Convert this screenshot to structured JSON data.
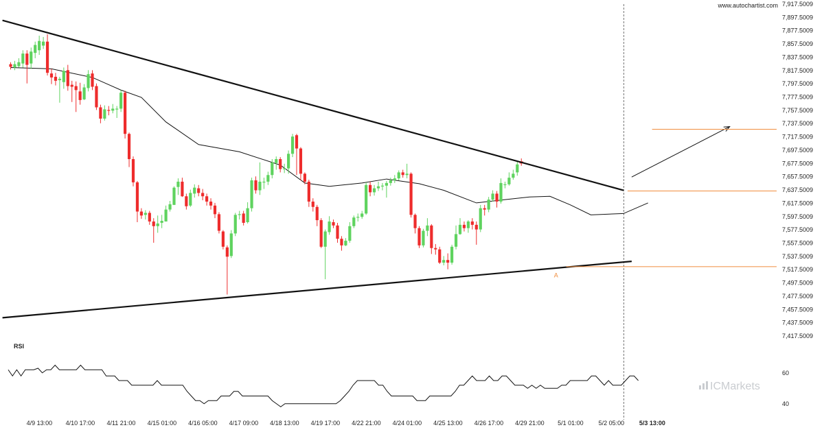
{
  "site": "www.autochartist.com",
  "brand": "ICMarkets",
  "colors": {
    "bull": "#5fd35f",
    "bear": "#ee2c2c",
    "trendline": "#111111",
    "projection": "#f08c3c",
    "ma": "#111111",
    "rsi": "#111111",
    "vline": "#777777",
    "brand": "#c9ccd0"
  },
  "chart_data": {
    "type": "candlestick",
    "ylim": [
      7417.5009,
      7917.5009
    ],
    "y_ticks": [
      7917.5009,
      7897.5009,
      7877.5009,
      7857.5009,
      7837.5009,
      7817.5009,
      7797.5009,
      7777.5009,
      7757.5009,
      7737.5009,
      7717.5009,
      7697.5009,
      7677.5009,
      7657.5009,
      7637.5009,
      7617.5009,
      7597.5009,
      7577.5009,
      7557.5009,
      7537.5009,
      7517.5009,
      7497.5009,
      7477.5009,
      7457.5009,
      7437.5009,
      7417.5009
    ],
    "y_tick_labels": [
      "7,917.5009",
      "7,897.5009",
      "7,877.5009",
      "7,857.5009",
      "7,837.5009",
      "7,817.5009",
      "7,797.5009",
      "7,777.5009",
      "7,757.5009",
      "7,737.5009",
      "7,717.5009",
      "7,697.5009",
      "7,677.5009",
      "7,657.5009",
      "7,637.5009",
      "7,617.5009",
      "7,597.5009",
      "7,577.5009",
      "7,557.5009",
      "7,537.5009",
      "7,517.5009",
      "7,497.5009",
      "7,477.5009",
      "7,457.5009",
      "7,437.5009",
      "7,417.5009"
    ],
    "x_labels": [
      {
        "label": "4/9 13:00",
        "bar": 2,
        "bold": false
      },
      {
        "label": "4/10 17:00",
        "bar": 12,
        "bold": false
      },
      {
        "label": "4/11 21:00",
        "bar": 22,
        "bold": false
      },
      {
        "label": "4/15 01:00",
        "bar": 32,
        "bold": false
      },
      {
        "label": "4/16 05:00",
        "bar": 42,
        "bold": false
      },
      {
        "label": "4/17 09:00",
        "bar": 52,
        "bold": false
      },
      {
        "label": "4/18 13:00",
        "bar": 62,
        "bold": false
      },
      {
        "label": "4/19 17:00",
        "bar": 72,
        "bold": false
      },
      {
        "label": "4/22 21:00",
        "bar": 82,
        "bold": false
      },
      {
        "label": "4/24 01:00",
        "bar": 92,
        "bold": false
      },
      {
        "label": "4/25 13:00",
        "bar": 102,
        "bold": false
      },
      {
        "label": "4/26 17:00",
        "bar": 112,
        "bold": false
      },
      {
        "label": "4/29 21:00",
        "bar": 122,
        "bold": false
      },
      {
        "label": "5/1 01:00",
        "bar": 132,
        "bold": false
      },
      {
        "label": "5/2 05:00",
        "bar": 142,
        "bold": false
      },
      {
        "label": "5/3 13:00",
        "bar": 152,
        "bold": true
      }
    ],
    "candles": [
      [
        7827,
        7823,
        7830,
        7819
      ],
      [
        7822,
        7827,
        7832,
        7818
      ],
      [
        7824,
        7830,
        7836,
        7822
      ],
      [
        7828,
        7843,
        7848,
        7822
      ],
      [
        7843,
        7826,
        7848,
        7798
      ],
      [
        7828,
        7846,
        7852,
        7820
      ],
      [
        7844,
        7856,
        7861,
        7836
      ],
      [
        7848,
        7862,
        7870,
        7841
      ],
      [
        7855,
        7861,
        7868,
        7850
      ],
      [
        7861,
        7814,
        7872,
        7810
      ],
      [
        7813,
        7807,
        7820,
        7797
      ],
      [
        7808,
        7802,
        7814,
        7795
      ],
      [
        7803,
        7805,
        7808,
        7769
      ],
      [
        7800,
        7817,
        7822,
        7790
      ],
      [
        7818,
        7794,
        7826,
        7787
      ],
      [
        7796,
        7793,
        7802,
        7770
      ],
      [
        7794,
        7788,
        7801,
        7755
      ],
      [
        7786,
        7773,
        7799,
        7766
      ],
      [
        7774,
        7792,
        7797,
        7773
      ],
      [
        7791,
        7812,
        7818,
        7786
      ],
      [
        7813,
        7793,
        7818,
        7788
      ],
      [
        7794,
        7762,
        7798,
        7758
      ],
      [
        7762,
        7745,
        7766,
        7738
      ],
      [
        7745,
        7759,
        7765,
        7742
      ],
      [
        7758,
        7757,
        7764,
        7750
      ],
      [
        7757,
        7760,
        7767,
        7753
      ],
      [
        7760,
        7760,
        7764,
        7746
      ],
      [
        7760,
        7784,
        7788,
        7755
      ],
      [
        7784,
        7722,
        7787,
        7715
      ],
      [
        7722,
        7684,
        7724,
        7672
      ],
      [
        7684,
        7649,
        7688,
        7643
      ],
      [
        7649,
        7605,
        7651,
        7589
      ],
      [
        7605,
        7599,
        7610,
        7594
      ],
      [
        7600,
        7603,
        7607,
        7593
      ],
      [
        7603,
        7590,
        7606,
        7585
      ],
      [
        7590,
        7583,
        7595,
        7558
      ],
      [
        7583,
        7587,
        7599,
        7573
      ],
      [
        7588,
        7591,
        7600,
        7580
      ],
      [
        7590,
        7608,
        7614,
        7590
      ],
      [
        7608,
        7616,
        7621,
        7605
      ],
      [
        7615,
        7641,
        7643,
        7615
      ],
      [
        7642,
        7650,
        7655,
        7630
      ],
      [
        7650,
        7628,
        7656,
        7627
      ],
      [
        7628,
        7613,
        7632,
        7608
      ],
      [
        7614,
        7633,
        7638,
        7612
      ],
      [
        7632,
        7641,
        7646,
        7626
      ],
      [
        7640,
        7633,
        7645,
        7628
      ],
      [
        7633,
        7628,
        7639,
        7622
      ],
      [
        7628,
        7620,
        7632,
        7614
      ],
      [
        7620,
        7614,
        7625,
        7608
      ],
      [
        7614,
        7601,
        7618,
        7595
      ],
      [
        7601,
        7576,
        7604,
        7572
      ],
      [
        7575,
        7552,
        7577,
        7548
      ],
      [
        7551,
        7537,
        7554,
        7480
      ],
      [
        7538,
        7572,
        7577,
        7535
      ],
      [
        7572,
        7600,
        7603,
        7568
      ],
      [
        7600,
        7601,
        7606,
        7593
      ],
      [
        7602,
        7588,
        7606,
        7584
      ],
      [
        7589,
        7610,
        7619,
        7587
      ],
      [
        7610,
        7652,
        7656,
        7605
      ],
      [
        7652,
        7637,
        7658,
        7632
      ],
      [
        7637,
        7650,
        7679,
        7630
      ],
      [
        7650,
        7650,
        7656,
        7639
      ],
      [
        7650,
        7660,
        7665,
        7645
      ],
      [
        7660,
        7679,
        7684,
        7655
      ],
      [
        7678,
        7684,
        7688,
        7668
      ],
      [
        7684,
        7669,
        7687,
        7664
      ],
      [
        7669,
        7670,
        7677,
        7663
      ],
      [
        7670,
        7692,
        7697,
        7662
      ],
      [
        7692,
        7718,
        7722,
        7687
      ],
      [
        7720,
        7700,
        7722,
        7660
      ],
      [
        7700,
        7662,
        7702,
        7652
      ],
      [
        7662,
        7650,
        7664,
        7646
      ],
      [
        7650,
        7620,
        7653,
        7612
      ],
      [
        7620,
        7612,
        7625,
        7605
      ],
      [
        7612,
        7592,
        7615,
        7583
      ],
      [
        7592,
        7552,
        7595,
        7550
      ],
      [
        7552,
        7575,
        7578,
        7503
      ],
      [
        7574,
        7590,
        7598,
        7570
      ],
      [
        7589,
        7584,
        7593,
        7580
      ],
      [
        7584,
        7564,
        7588,
        7558
      ],
      [
        7564,
        7554,
        7568,
        7546
      ],
      [
        7554,
        7561,
        7565,
        7553
      ],
      [
        7561,
        7583,
        7589,
        7558
      ],
      [
        7583,
        7596,
        7599,
        7580
      ],
      [
        7596,
        7597,
        7602,
        7590
      ],
      [
        7597,
        7602,
        7606,
        7594
      ],
      [
        7602,
        7645,
        7649,
        7600
      ],
      [
        7645,
        7634,
        7650,
        7628
      ],
      [
        7634,
        7640,
        7645,
        7629
      ],
      [
        7640,
        7643,
        7650,
        7636
      ],
      [
        7643,
        7644,
        7648,
        7637
      ],
      [
        7644,
        7648,
        7651,
        7626
      ],
      [
        7648,
        7652,
        7656,
        7644
      ],
      [
        7652,
        7655,
        7660,
        7648
      ],
      [
        7655,
        7664,
        7667,
        7652
      ],
      [
        7664,
        7660,
        7668,
        7656
      ],
      [
        7660,
        7662,
        7677,
        7655
      ],
      [
        7662,
        7600,
        7664,
        7596
      ],
      [
        7600,
        7580,
        7602,
        7572
      ],
      [
        7580,
        7554,
        7583,
        7550
      ],
      [
        7554,
        7576,
        7579,
        7551
      ],
      [
        7576,
        7584,
        7595,
        7568
      ],
      [
        7584,
        7550,
        7586,
        7541
      ],
      [
        7550,
        7548,
        7556,
        7540
      ],
      [
        7548,
        7528,
        7552,
        7526
      ],
      [
        7528,
        7532,
        7538,
        7524
      ],
      [
        7532,
        7528,
        7542,
        7518
      ],
      [
        7528,
        7552,
        7555,
        7525
      ],
      [
        7552,
        7571,
        7584,
        7548
      ],
      [
        7571,
        7585,
        7595,
        7570
      ],
      [
        7585,
        7580,
        7590,
        7575
      ],
      [
        7580,
        7590,
        7592,
        7573
      ],
      [
        7590,
        7585,
        7595,
        7578
      ],
      [
        7585,
        7578,
        7590,
        7555
      ],
      [
        7578,
        7610,
        7615,
        7574
      ],
      [
        7610,
        7608,
        7615,
        7599
      ],
      [
        7608,
        7623,
        7627,
        7604
      ],
      [
        7623,
        7632,
        7637,
        7620
      ],
      [
        7632,
        7620,
        7636,
        7611
      ],
      [
        7620,
        7648,
        7655,
        7617
      ],
      [
        7646,
        7646,
        7650,
        7640
      ],
      [
        7646,
        7656,
        7664,
        7644
      ],
      [
        7656,
        7662,
        7668,
        7653
      ],
      [
        7664,
        7676,
        7681,
        7659
      ],
      [
        7680,
        7678,
        7685,
        7674
      ]
    ],
    "moving_average": [
      [
        0,
        7822
      ],
      [
        10,
        7820
      ],
      [
        20,
        7807
      ],
      [
        27,
        7788
      ],
      [
        32,
        7777
      ],
      [
        38,
        7740
      ],
      [
        46,
        7706
      ],
      [
        56,
        7695
      ],
      [
        66,
        7675
      ],
      [
        72,
        7648
      ],
      [
        78,
        7643
      ],
      [
        86,
        7648
      ],
      [
        92,
        7654
      ],
      [
        100,
        7647
      ],
      [
        106,
        7637
      ],
      [
        114,
        7618
      ],
      [
        121,
        7623
      ],
      [
        127,
        7627
      ],
      [
        132,
        7628
      ],
      [
        137,
        7615
      ],
      [
        142,
        7600
      ],
      [
        150,
        7602
      ],
      [
        156,
        7618
      ]
    ],
    "trendlines": [
      {
        "from": [
          -2,
          7893
        ],
        "to": [
          150,
          7637
        ]
      },
      {
        "from": [
          -2,
          7445
        ],
        "to": [
          152,
          7530
        ]
      }
    ],
    "projection_arrow": {
      "from": [
        152,
        7657
      ],
      "to": [
        176,
        7733
      ]
    },
    "projection_levels": [
      {
        "value": 7729,
        "from_bar": 157
      },
      {
        "value": 7636,
        "from_bar": 151
      },
      {
        "value": 7522,
        "from_bar": 136
      }
    ],
    "marker": {
      "label": "A",
      "bar": 136,
      "value": 7512
    },
    "current_bar": 152,
    "rsi": {
      "title": "RSI",
      "ylim": [
        35,
        75
      ],
      "tick_labels": [
        "60",
        "40"
      ],
      "tick_values": [
        60,
        40
      ],
      "values": [
        62,
        58,
        62,
        58,
        62,
        62,
        62,
        63,
        60,
        62,
        62,
        65,
        62,
        62,
        62,
        62,
        62,
        65,
        62,
        62,
        62,
        62,
        62,
        58,
        58,
        58,
        55,
        55,
        55,
        52,
        52,
        52,
        52,
        52,
        52,
        55,
        52,
        52,
        52,
        52,
        52,
        52,
        48,
        45,
        42,
        42,
        40,
        42,
        42,
        42,
        45,
        45,
        45,
        48,
        48,
        45,
        45,
        45,
        45,
        45,
        45,
        45,
        42,
        40,
        38,
        40,
        40,
        40,
        40,
        40,
        40,
        40,
        40,
        40,
        40,
        40,
        40,
        40,
        42,
        45,
        48,
        52,
        55,
        55,
        55,
        55,
        55,
        52,
        52,
        48,
        45,
        45,
        45,
        45,
        45,
        45,
        42,
        42,
        42,
        45,
        45,
        45,
        45,
        45,
        45,
        48,
        52,
        52,
        55,
        58,
        55,
        55,
        55,
        58,
        55,
        55,
        58,
        58,
        55,
        52,
        52,
        52,
        50,
        52,
        50,
        52,
        50,
        50,
        50,
        50,
        52,
        52,
        55,
        55,
        55,
        55,
        55,
        58,
        58,
        55,
        52,
        55,
        52,
        52,
        52,
        55,
        58,
        58,
        55
      ]
    }
  }
}
